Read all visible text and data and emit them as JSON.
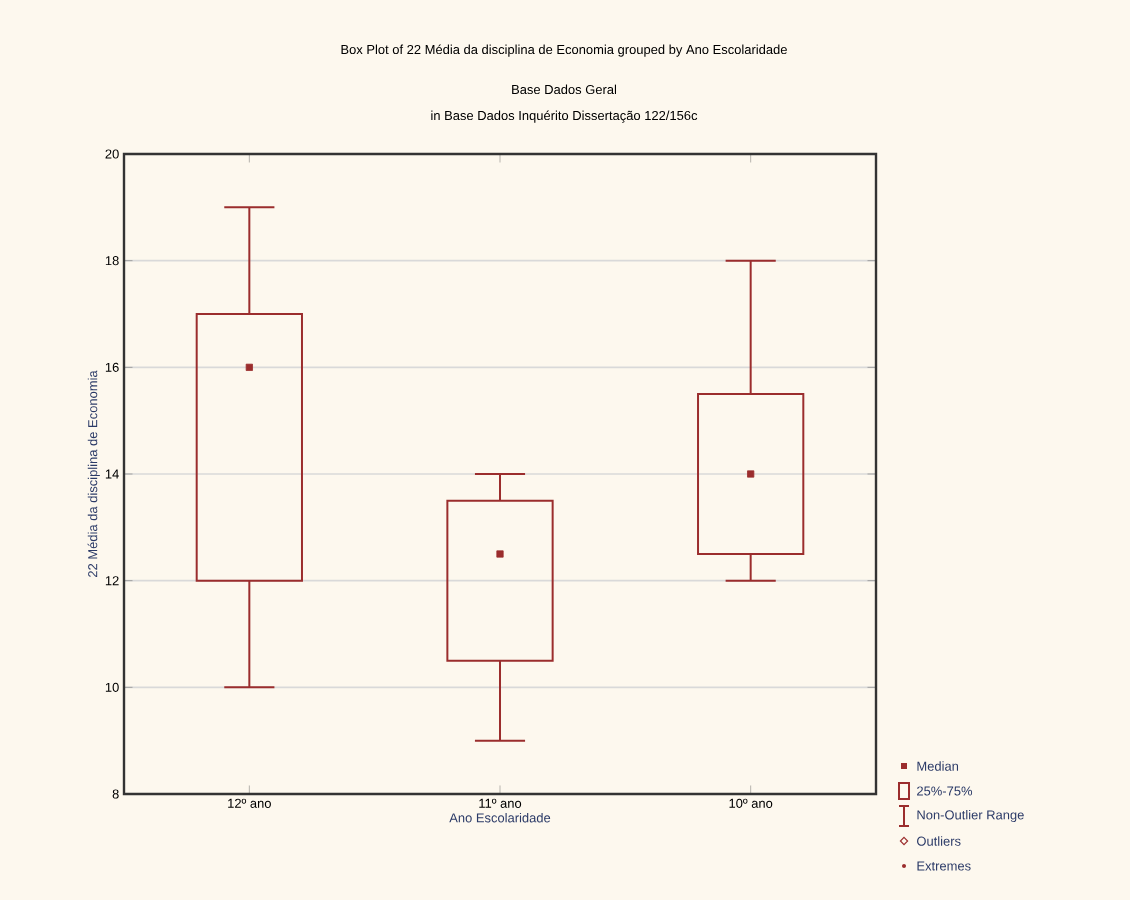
{
  "chart_data": {
    "type": "box",
    "title": "Box Plot of 22 Média da disciplina de Economia grouped by  Ano Escolaridade",
    "subtitle": "Base Dados Geral",
    "annotations": [
      "in Base Dados Inquérito Dissertação 122/156c",
      "Median",
      "25%-75%",
      "Non-Outlier Range",
      "Outliers",
      "Extremes"
    ],
    "xlabel": "Ano Escolaridade",
    "ylabel": "22 Média da disciplina de Economia",
    "categories": [
      "12º ano",
      "11º ano",
      "10º ano"
    ],
    "ylim": [
      8,
      20
    ],
    "yticks": [
      8,
      10,
      12,
      14,
      16,
      18,
      20
    ],
    "grid": "y",
    "marker": "square",
    "series": [
      {
        "color": "#9b2d2d",
        "boxes": [
          {
            "low": 10,
            "q1": 12,
            "median": 16,
            "q3": 17,
            "high": 19
          },
          {
            "low": 9,
            "q1": 10.5,
            "median": 12.5,
            "q3": 13.5,
            "high": 14
          },
          {
            "low": 12,
            "q1": 12.5,
            "median": 14,
            "q3": 15.5,
            "high": 18
          }
        ]
      }
    ]
  }
}
